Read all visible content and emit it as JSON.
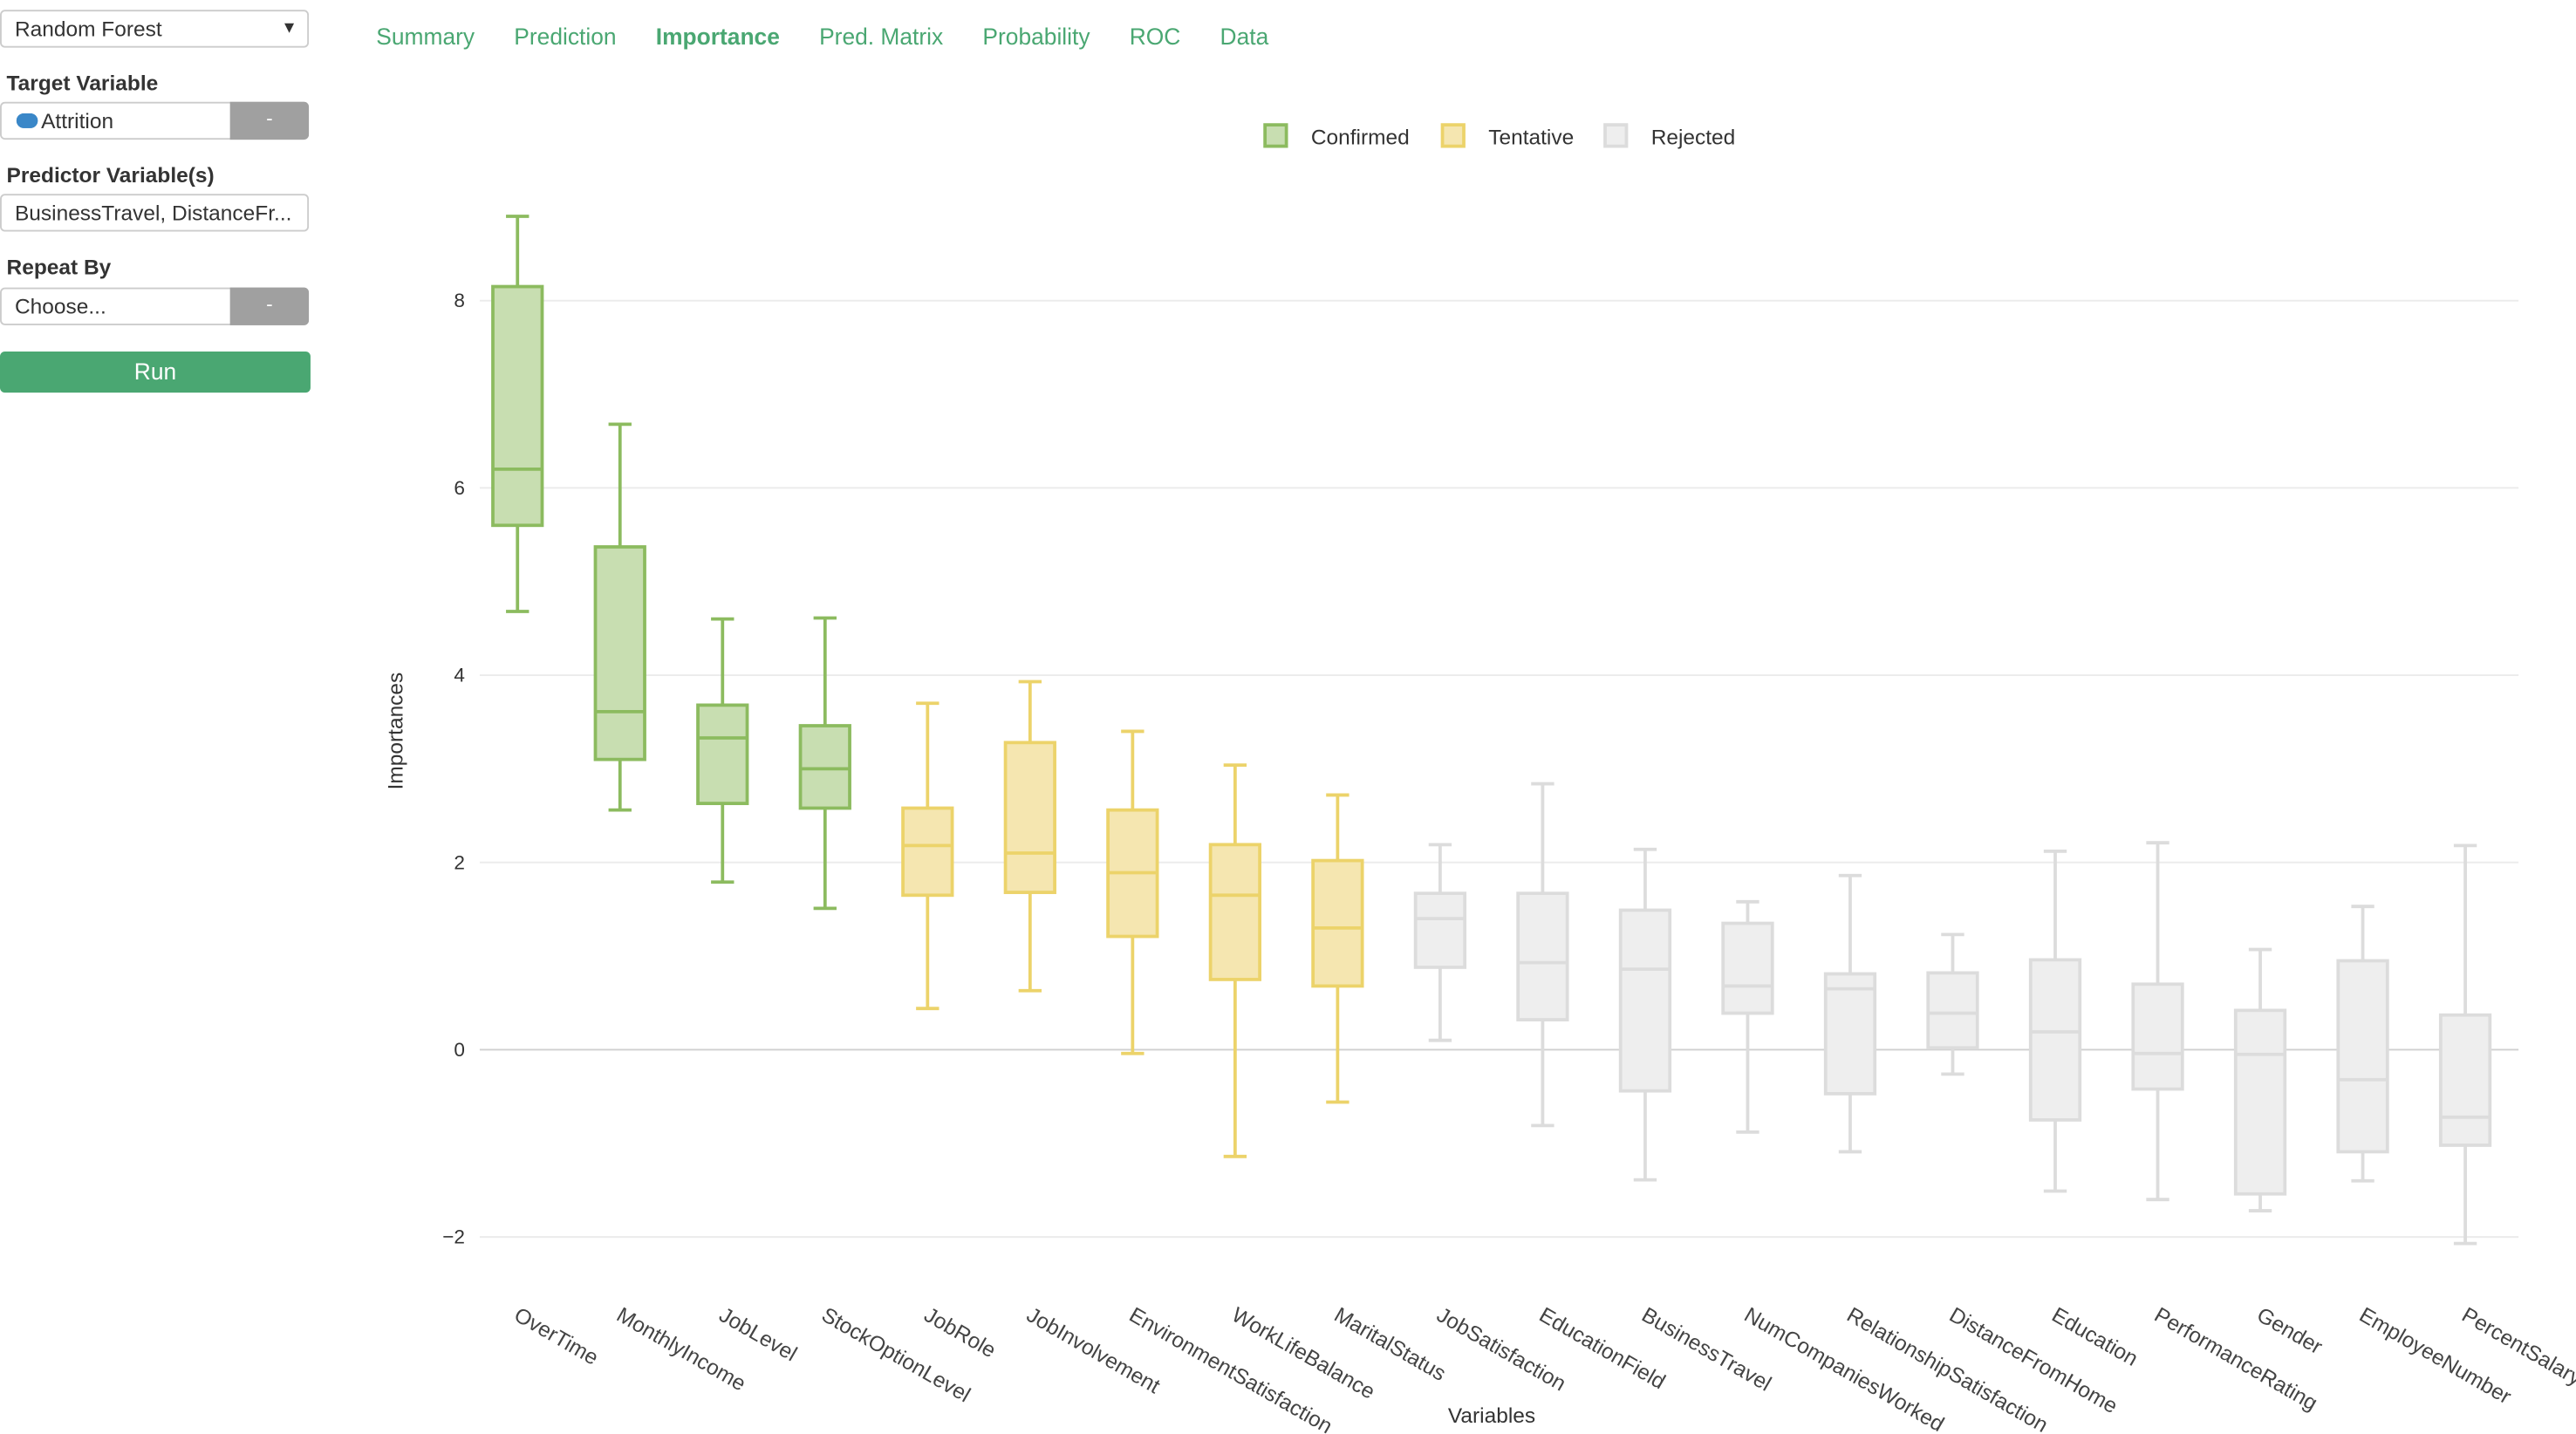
{
  "sidebar": {
    "model_select": "Random Forest",
    "target_label": "Target Variable",
    "target_value": "Attrition",
    "target_minus": "-",
    "predictor_label": "Predictor Variable(s)",
    "predictor_value": "BusinessTravel, DistanceFr...",
    "repeat_label": "Repeat By",
    "repeat_placeholder": "Choose...",
    "repeat_minus": "-",
    "run_label": "Run"
  },
  "tabs": [
    {
      "label": "Summary"
    },
    {
      "label": "Prediction"
    },
    {
      "label": "Importance",
      "active": true
    },
    {
      "label": "Pred. Matrix"
    },
    {
      "label": "Probability"
    },
    {
      "label": "ROC"
    },
    {
      "label": "Data"
    }
  ],
  "chart_data": {
    "type": "boxplot",
    "xlabel": "Variables",
    "ylabel": "Importances",
    "ylim": [
      -2.5,
      9.0
    ],
    "yticks": [
      -2,
      0,
      2,
      4,
      6,
      8
    ],
    "ytick_labels": [
      "−2",
      "0",
      "2",
      "4",
      "6",
      "8"
    ],
    "grid": true,
    "legend_placement": "top-center",
    "legend": [
      {
        "name": "Confirmed",
        "fill": "#c8deb1",
        "stroke": "#8cbb5f"
      },
      {
        "name": "Tentative",
        "fill": "#f5e6b0",
        "stroke": "#ecd36a"
      },
      {
        "name": "Rejected",
        "fill": "#eeeeee",
        "stroke": "#dcdcdc"
      }
    ],
    "categories": [
      {
        "name": "OverTime",
        "decision": "Confirmed",
        "min": 4.68,
        "q1": 5.6,
        "median": 6.2,
        "q3": 8.15,
        "max": 8.9
      },
      {
        "name": "MonthlyIncome",
        "decision": "Confirmed",
        "min": 2.56,
        "q1": 3.1,
        "median": 3.61,
        "q3": 5.37,
        "max": 6.68
      },
      {
        "name": "JobLevel",
        "decision": "Confirmed",
        "min": 1.79,
        "q1": 2.63,
        "median": 3.33,
        "q3": 3.68,
        "max": 4.6
      },
      {
        "name": "StockOptionLevel",
        "decision": "Confirmed",
        "min": 1.51,
        "q1": 2.58,
        "median": 3.0,
        "q3": 3.46,
        "max": 4.61
      },
      {
        "name": "JobRole",
        "decision": "Tentative",
        "min": 0.44,
        "q1": 1.65,
        "median": 2.18,
        "q3": 2.58,
        "max": 3.7
      },
      {
        "name": "JobInvolvement",
        "decision": "Tentative",
        "min": 0.63,
        "q1": 1.68,
        "median": 2.1,
        "q3": 3.28,
        "max": 3.93
      },
      {
        "name": "EnvironmentSatisfaction",
        "decision": "Tentative",
        "min": -0.04,
        "q1": 1.21,
        "median": 1.89,
        "q3": 2.56,
        "max": 3.4
      },
      {
        "name": "WorkLifeBalance",
        "decision": "Tentative",
        "min": -1.14,
        "q1": 0.75,
        "median": 1.65,
        "q3": 2.19,
        "max": 3.04
      },
      {
        "name": "MaritalStatus",
        "decision": "Tentative",
        "min": -0.56,
        "q1": 0.68,
        "median": 1.3,
        "q3": 2.02,
        "max": 2.72
      },
      {
        "name": "JobSatisfaction",
        "decision": "Rejected",
        "min": 0.1,
        "q1": 0.88,
        "median": 1.4,
        "q3": 1.67,
        "max": 2.19
      },
      {
        "name": "EducationField",
        "decision": "Rejected",
        "min": -0.81,
        "q1": 0.32,
        "median": 0.93,
        "q3": 1.67,
        "max": 2.84
      },
      {
        "name": "BusinessTravel",
        "decision": "Rejected",
        "min": -1.39,
        "q1": -0.44,
        "median": 0.86,
        "q3": 1.49,
        "max": 2.14
      },
      {
        "name": "NumCompaniesWorked",
        "decision": "Rejected",
        "min": -0.88,
        "q1": 0.39,
        "median": 0.68,
        "q3": 1.35,
        "max": 1.58
      },
      {
        "name": "RelationshipSatisfaction",
        "decision": "Rejected",
        "min": -1.09,
        "q1": -0.47,
        "median": 0.65,
        "q3": 0.81,
        "max": 1.86
      },
      {
        "name": "DistanceFromHome",
        "decision": "Rejected",
        "min": -0.26,
        "q1": 0.02,
        "median": 0.39,
        "q3": 0.82,
        "max": 1.23
      },
      {
        "name": "Education",
        "decision": "Rejected",
        "min": -1.51,
        "q1": -0.75,
        "median": 0.19,
        "q3": 0.96,
        "max": 2.12
      },
      {
        "name": "PerformanceRating",
        "decision": "Rejected",
        "min": -1.6,
        "q1": -0.42,
        "median": -0.04,
        "q3": 0.7,
        "max": 2.21
      },
      {
        "name": "Gender",
        "decision": "Rejected",
        "min": -1.72,
        "q1": -1.54,
        "median": -0.05,
        "q3": 0.42,
        "max": 1.07
      },
      {
        "name": "EmployeeNumber",
        "decision": "Rejected",
        "min": -1.4,
        "q1": -1.09,
        "median": -0.32,
        "q3": 0.95,
        "max": 1.53
      },
      {
        "name": "PercentSalary",
        "decision": "Rejected",
        "min": -2.07,
        "q1": -1.02,
        "median": -0.72,
        "q3": 0.37,
        "max": 2.18
      }
    ]
  }
}
